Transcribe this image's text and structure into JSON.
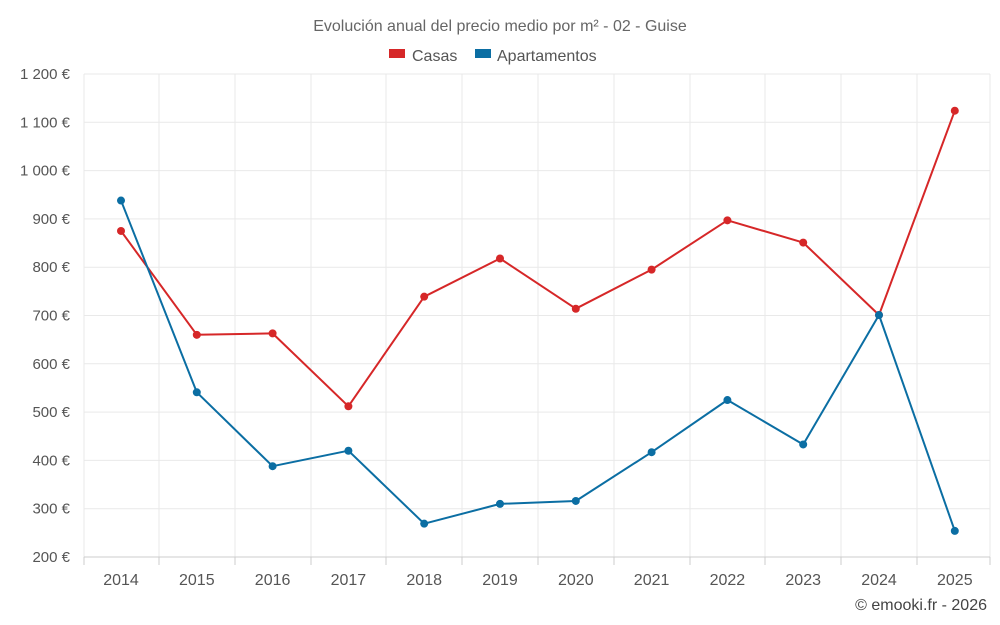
{
  "chart_data": {
    "type": "line",
    "title": "Evolución anual del precio medio por m² - 02 - Guise",
    "categories": [
      "2014",
      "2015",
      "2016",
      "2017",
      "2018",
      "2019",
      "2020",
      "2021",
      "2022",
      "2023",
      "2024",
      "2025"
    ],
    "series": [
      {
        "name": "Casas",
        "color": "#d62728",
        "values": [
          875,
          660,
          663,
          512,
          739,
          818,
          714,
          795,
          897,
          851,
          701,
          1124
        ]
      },
      {
        "name": "Apartamentos",
        "color": "#0b6ea3",
        "values": [
          938,
          541,
          388,
          420,
          269,
          310,
          316,
          417,
          525,
          433,
          701,
          254
        ]
      }
    ],
    "y_ticks": [
      "200 €",
      "300 €",
      "400 €",
      "500 €",
      "600 €",
      "700 €",
      "800 €",
      "900 €",
      "1 000 €",
      "1 100 €",
      "1 200 €"
    ],
    "ylim": [
      200,
      1200
    ],
    "grid": true,
    "legend_position": "top-center",
    "xlabel": "",
    "ylabel": ""
  },
  "credit": "© emooki.fr - 2026"
}
